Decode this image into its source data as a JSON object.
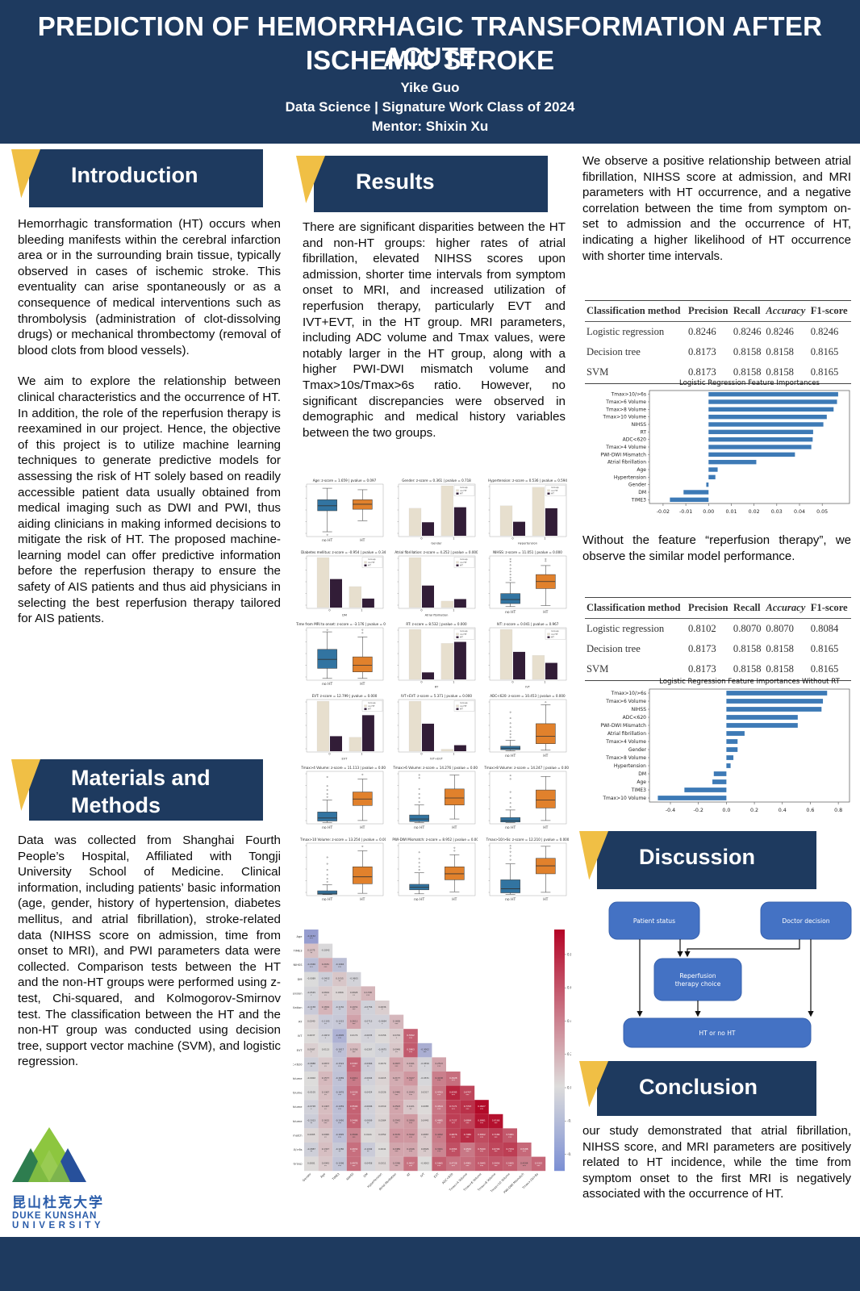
{
  "colors": {
    "navy": "#1e3a5f",
    "gold": "#f0bf45",
    "box_blue": "#3274a1",
    "box_orange": "#e1812c",
    "bar_beige": "#e7dfce",
    "bar_dark": "#321d37",
    "feat_bar": "#3d7ab6",
    "flow_box": "#4472c4"
  },
  "header": {
    "title_line1": "PREDICTION OF HEMORRHAGIC TRANSFORMATION AFTER ACUTE",
    "title_line2": "ISCHEMIC STROKE",
    "author": "Yike Guo",
    "program": "Data Science | Signature Work Class of 2024",
    "mentor": "Mentor: Shixin Xu"
  },
  "sections": {
    "introduction": {
      "title": "Introduction",
      "para1": "Hemorrhagic transformation (HT) occurs when bleeding manifests within the cerebral infarction area or in the surrounding brain tissue, typically observed in cases of ischemic stroke. This eventuality can arise spontaneously or as a consequence of medical interventions such as thrombolysis (administration of clot-dissolving drugs) or mechanical thrombectomy (removal of blood clots from blood vessels).",
      "para2": "We aim to explore the relationship between clinical characteristics and the occurrence of HT. In addition, the role of the reperfusion therapy is reexamined in our project. Hence, the objective of this project is to utilize machine learning techniques to generate predictive models for assessing the risk of HT solely based on readily accessible patient data usually obtained from medical imaging such as DWI and PWI, thus aiding clinicians in making informed decisions to mitigate the risk of HT. The proposed machine-learning model can offer predictive information before the reperfusion therapy to ensure the safety of AIS patients and thus aid physicians in selecting the best reperfusion therapy tailored for AIS patients."
    },
    "methods": {
      "title_line1": "Materials and",
      "title_line2": "Methods",
      "body": "Data was collected from Shanghai Fourth People’s Hospital, Affiliated with Tongji University School of Medicine. Clinical information, including patients’ basic information (age, gender, history of hypertension, diabetes mellitus, and atrial fibrillation), stroke-related data (NIHSS score on admission, time from onset to MRI), and PWI parameters data were collected. Comparison tests between the HT and the non-HT groups were performed using z-test, Chi-squared, and Kolmogorov-Smirnov test. The classification between the HT and the non-HT group was conducted using decision tree, support vector machine (SVM), and logistic regression."
    },
    "results": {
      "title": "Results",
      "body": "There are significant disparities between the HT and non-HT groups: higher rates of atrial fibrillation, elevated NIHSS scores upon admission, shorter time intervals from symptom onset to MRI, and increased utilization of reperfusion therapy, particularly EVT and IVT+EVT, in the HT group. MRI parameters, including ADC volume and Tmax values, were notably larger in the HT group, along with a higher PWI-DWI mismatch volume and Tmax>10s/Tmax>6s ratio. However, no significant discrepancies were observed in demographic and medical history variables between the two groups."
    },
    "right_column": {
      "para1": "We observe a positive relationship between atrial fibrillation, NIHSS score at admission, and MRI parameters with HT occurrence, and a negative correlation between the time from symptom on- set to admission and the occurrence of HT, indicating a higher likelihood of HT occurrence with shorter time intervals.",
      "para2": "Without the feature “reperfusion therapy”, we observe the similar model performance."
    },
    "discussion": {
      "title": "Discussion"
    },
    "conclusion": {
      "title": "Conclusion",
      "body": "our study demonstrated that atrial fibrillation, NIHSS score, and MRI parameters are positively related to HT incidence, while the time from symptom onset to the first MRI is negatively associated with the occurrence of HT."
    }
  },
  "tables": [
    {
      "headers": [
        "Classification method",
        "Precision",
        "Recall",
        "Accuracy",
        "F1-score"
      ],
      "rows": [
        [
          "Logistic regression",
          "0.8246",
          "0.8246",
          "0.8246",
          "0.8246"
        ],
        [
          "Decision tree",
          "0.8173",
          "0.8158",
          "0.8158",
          "0.8165"
        ],
        [
          "SVM",
          "0.8173",
          "0.8158",
          "0.8158",
          "0.8165"
        ]
      ]
    },
    {
      "headers": [
        "Classification method",
        "Precision",
        "Recall",
        "Accuracy",
        "F1-score"
      ],
      "rows": [
        [
          "Logistic regression",
          "0.8102",
          "0.8070",
          "0.8070",
          "0.8084"
        ],
        [
          "Decision tree",
          "0.8173",
          "0.8158",
          "0.8158",
          "0.8165"
        ],
        [
          "SVM",
          "0.8173",
          "0.8158",
          "0.8158",
          "0.8165"
        ]
      ]
    }
  ],
  "chart_data": [
    {
      "type": "bar",
      "name": "feat1",
      "title": "Logistic Regression Feature Importances",
      "categories": [
        "Tmax>10/>6s",
        "Tmax>6 Volume",
        "Tmax>8 Volume",
        "Tmax>10 Volume",
        "NIHSS",
        "RT",
        "ADC<620",
        "Tmax>4 Volume",
        "PWI-DWI Mismatch",
        "Atrial fibrillation",
        "Age",
        "Hypertension",
        "Gender",
        "DM",
        "TIME3"
      ],
      "values": [
        0.057,
        0.0565,
        0.055,
        0.052,
        0.0505,
        0.046,
        0.0458,
        0.0452,
        0.038,
        0.021,
        0.004,
        0.003,
        -0.001,
        -0.011,
        -0.017
      ],
      "xticks": [
        "-0.02",
        "-0.01",
        "0.00",
        "0.01",
        "0.02",
        "0.03",
        "0.04",
        "0.05"
      ],
      "xlim": [
        -0.026,
        0.062
      ]
    },
    {
      "type": "bar",
      "name": "feat2",
      "title": "Logistic Regression Feature Importances Without RT",
      "categories": [
        "Tmax>10/>6s",
        "Tmax>6 Volume",
        "NIHSS",
        "ADC<620",
        "PWI-DWI Mismatch",
        "Atrial fibrillation",
        "Tmax>4 Volume",
        "Gender",
        "Tmax>8 Volume",
        "Hypertension",
        "DM",
        "Age",
        "TIME3",
        "Tmax>10 Volume"
      ],
      "values": [
        0.72,
        0.69,
        0.68,
        0.51,
        0.51,
        0.13,
        0.08,
        0.08,
        0.05,
        0.03,
        -0.09,
        -0.1,
        -0.3,
        -0.49
      ],
      "xticks": [
        "-0.4",
        "-0.2",
        "0.0",
        "0.2",
        "0.4",
        "0.6",
        "0.8"
      ],
      "xlim": [
        -0.55,
        0.88
      ]
    }
  ],
  "plots": [
    {
      "type": "box",
      "title": "Age: z-score = 1.659 | pvalue = 0.097",
      "cats": [
        "no HT",
        "HT"
      ],
      "blue": {
        "lo": 0.08,
        "q1": 0.5,
        "med": 0.6,
        "q3": 0.72,
        "hi": 0.95,
        "out": [
          0.02
        ]
      },
      "orange": {
        "lo": 0.3,
        "q1": 0.53,
        "med": 0.63,
        "q3": 0.72,
        "hi": 0.92,
        "out": []
      }
    },
    {
      "type": "bar",
      "title": "Gender: z-score = 0.361 | pvalue = 0.718",
      "xlabel": "Gender",
      "groups": [
        [
          0.55,
          0.27
        ],
        [
          1.0,
          0.57
        ]
      ]
    },
    {
      "type": "bar",
      "title": "Hypertension: z-score = 0.536 | pvalue = 0.594",
      "xlabel": "Hypertension",
      "groups": [
        [
          0.6,
          0.28
        ],
        [
          0.97,
          0.55
        ]
      ]
    },
    {
      "type": "bar",
      "title": "Diabetes mellitus: z-score = -0.954 | pvalue = 0.340",
      "xlabel": "DM",
      "groups": [
        [
          1.0,
          0.57
        ],
        [
          0.42,
          0.18
        ]
      ]
    },
    {
      "type": "bar",
      "title": "Atrial fibrillation: z-score = 4.252 | pvalue = 0.000",
      "xlabel": "Atrial fibrillation",
      "groups": [
        [
          1.0,
          0.44
        ],
        [
          0.13,
          0.17
        ]
      ]
    },
    {
      "type": "box",
      "title": "NIHSS: z-score = 11.051 | pvalue = 0.000",
      "cats": [
        "no HT",
        "HT"
      ],
      "blue": {
        "lo": 0.02,
        "q1": 0.08,
        "med": 0.16,
        "q3": 0.28,
        "hi": 0.5,
        "out": [
          0.55,
          0.6,
          0.66,
          0.72,
          0.78,
          0.85,
          0.92,
          0.97
        ]
      },
      "orange": {
        "lo": 0.04,
        "q1": 0.38,
        "med": 0.52,
        "q3": 0.66,
        "hi": 0.84,
        "out": [
          0.93,
          0.97
        ]
      }
    },
    {
      "type": "box",
      "title": "Time from MRI to onset: z-score = -3.176 | pvalue = 0.001",
      "cats": [
        "no HT",
        "HT"
      ],
      "blue": {
        "lo": 0.02,
        "q1": 0.22,
        "med": 0.4,
        "q3": 0.6,
        "hi": 0.95,
        "out": [
          0.99
        ]
      },
      "orange": {
        "lo": 0.02,
        "q1": 0.15,
        "med": 0.28,
        "q3": 0.45,
        "hi": 0.85,
        "out": [
          0.93,
          0.99
        ]
      }
    },
    {
      "type": "bar",
      "title": "RT: z-score = 8.532 | pvalue = 0.000",
      "xlabel": "RT",
      "groups": [
        [
          1.0,
          0.14
        ],
        [
          0.72,
          0.75
        ]
      ]
    },
    {
      "type": "bar",
      "title": "IVT: z-score = 0.041 | pvalue = 0.967",
      "xlabel": "IVT",
      "groups": [
        [
          1.0,
          0.55
        ],
        [
          0.48,
          0.33
        ]
      ]
    },
    {
      "type": "bar",
      "title": "EVT: z-score = 12.799 | pvalue = 0.000",
      "xlabel": "EVT",
      "groups": [
        [
          1.0,
          0.3
        ],
        [
          0.28,
          0.72
        ]
      ]
    },
    {
      "type": "bar",
      "title": "IVT+EVT: z-score = 5.371 | pvalue = 0.000",
      "xlabel": "IVT+EVT",
      "groups": [
        [
          1.0,
          0.55
        ],
        [
          0.04,
          0.12
        ]
      ]
    },
    {
      "type": "box",
      "title": "ADC<620: z-score = 10.453 | pvalue = 0.000",
      "cats": [
        "no HT",
        "HT"
      ],
      "blue": {
        "lo": 0.01,
        "q1": 0.03,
        "med": 0.06,
        "q3": 0.1,
        "hi": 0.22,
        "out": [
          0.28,
          0.34,
          0.4,
          0.48,
          0.56,
          0.66,
          0.78
        ]
      },
      "orange": {
        "lo": 0.02,
        "q1": 0.15,
        "med": 0.3,
        "q3": 0.55,
        "hi": 0.93,
        "out": [
          0.98
        ]
      }
    },
    {
      "type": "box",
      "title": "Tmax>4 Volume: z-score = 11.113 | pvalue = 0.000",
      "cats": [
        "no HT",
        "HT"
      ],
      "blue": {
        "lo": 0.01,
        "q1": 0.04,
        "med": 0.1,
        "q3": 0.22,
        "hi": 0.46,
        "out": [
          0.52,
          0.58,
          0.66,
          0.74,
          0.92
        ]
      },
      "orange": {
        "lo": 0.05,
        "q1": 0.35,
        "med": 0.48,
        "q3": 0.62,
        "hi": 0.88,
        "out": [
          0.97
        ]
      }
    },
    {
      "type": "box",
      "title": "Tmax>6 Volume: z-score = 14.276 | pvalue = 0.000",
      "cats": [
        "no HT",
        "HT"
      ],
      "blue": {
        "lo": 0.01,
        "q1": 0.03,
        "med": 0.08,
        "q3": 0.16,
        "hi": 0.36,
        "out": [
          0.42,
          0.5,
          0.58,
          0.68,
          0.9,
          0.96
        ]
      },
      "orange": {
        "lo": 0.08,
        "q1": 0.36,
        "med": 0.5,
        "q3": 0.68,
        "hi": 0.96,
        "out": []
      }
    },
    {
      "type": "box",
      "title": "Tmax>8 Volume: z-score = 14.247 | pvalue = 0.000",
      "cats": [
        "no HT",
        "HT"
      ],
      "blue": {
        "lo": 0.01,
        "q1": 0.02,
        "med": 0.05,
        "q3": 0.11,
        "hi": 0.26,
        "out": [
          0.32,
          0.4,
          0.5,
          0.62,
          0.88,
          0.95
        ]
      },
      "orange": {
        "lo": 0.05,
        "q1": 0.3,
        "med": 0.46,
        "q3": 0.66,
        "hi": 0.93,
        "out": []
      }
    },
    {
      "type": "box",
      "title": "Tmax>10 Volume: z-score = 13.254 | pvalue = 0.000",
      "cats": [
        "no HT",
        "HT"
      ],
      "blue": {
        "lo": 0.005,
        "q1": 0.01,
        "med": 0.03,
        "q3": 0.08,
        "hi": 0.2,
        "out": [
          0.26,
          0.32,
          0.4,
          0.5,
          0.62,
          0.75
        ]
      },
      "orange": {
        "lo": 0.03,
        "q1": 0.22,
        "med": 0.36,
        "q3": 0.56,
        "hi": 0.88,
        "out": [
          0.97
        ]
      }
    },
    {
      "type": "box",
      "title": "PWI-DWI Mismatch: z-score = 8.952 | pvalue = 0.000",
      "cats": [
        "no HT",
        "HT"
      ],
      "blue": {
        "lo": 0.02,
        "q1": 0.1,
        "med": 0.15,
        "q3": 0.21,
        "hi": 0.44,
        "out": [
          0.5,
          0.56,
          0.64,
          0.72,
          0.85
        ]
      },
      "orange": {
        "lo": 0.06,
        "q1": 0.3,
        "med": 0.42,
        "q3": 0.56,
        "hi": 0.8,
        "out": [
          0.88,
          0.94
        ]
      }
    },
    {
      "type": "box",
      "title": "Tmax>10/>6s: z-score = 12.210 | pvalue = 0.000",
      "cats": [
        "no HT",
        "HT"
      ],
      "blue": {
        "lo": 0.01,
        "q1": 0.04,
        "med": 0.12,
        "q3": 0.3,
        "hi": 0.62,
        "out": [
          0.7,
          0.78,
          0.86,
          0.93,
          0.98
        ]
      },
      "orange": {
        "lo": 0.05,
        "q1": 0.42,
        "med": 0.58,
        "q3": 0.73,
        "hi": 0.97,
        "out": []
      }
    }
  ],
  "bar_legend": {
    "title": "Group",
    "no_ht": "no HT",
    "ht": "HT"
  },
  "heatmap": {
    "row_labels": [
      "Age",
      "TIME3",
      "NIHSS",
      "DM",
      "Hypertension",
      "Atrial fibrillation",
      "RT",
      "IVT",
      "EVT",
      "ADC<620",
      "Tmax>4 Volume",
      "Tmax>6 Volume",
      "Tmax>8 Volume",
      "Tmax>10 Volume",
      "PWI-DWI Mismatch",
      "Tmax>10/>6s",
      "Group"
    ],
    "col_labels": [
      "Gender",
      "Age",
      "TIME3",
      "NIHSS",
      "DM",
      "Hypertension",
      "Atrial fibrillation",
      "RT",
      "IVT",
      "EVT",
      "ADC<620",
      "Tmax>4 Volume",
      "Tmax>6 Volume",
      "Tmax>8 Volume",
      "Tmax>10 Volume",
      "PWI-DWI Mismatch",
      "Tmax>10/>6s"
    ],
    "values": [
      [
        -0.4152
      ],
      [
        0.1275,
        -0.0242
      ],
      [
        -0.2046,
        0.2181,
        -0.1946
      ],
      [
        -0.0089,
        -0.0932,
        0.1015,
        -0.0605
      ],
      [
        -0.0545,
        0.0819,
        0.0306,
        0.0828,
        0.1728
      ],
      [
        -0.1158,
        0.1819,
        -0.115,
        0.1931,
        -0.0756,
        0.0636
      ],
      [
        0.034,
        -0.1195,
        -0.1315,
        0.2611,
        -0.0713,
        -0.0694,
        0.1658
      ],
      [
        0.0037,
        -0.0672,
        -0.2805,
        0.0179,
        -0.0635,
        0.0156,
        0.0729,
        0.5592
      ],
      [
        0.0587,
        0.0113,
        -0.1817,
        0.1556,
        -0.0267,
        -0.0675,
        0.0948,
        0.5863,
        -0.3002
      ],
      [
        -0.0888,
        0.0873,
        -0.1522,
        0.5367,
        -0.0966,
        0.0079,
        0.2637,
        0.1941,
        -0.0556,
        0.2513
      ],
      [
        -0.0002,
        0.1577,
        -0.1689,
        0.4411,
        -0.0694,
        0.0415,
        0.2177,
        0.3127,
        -0.0331,
        0.4218,
        0.4928
      ],
      [
        -0.0105,
        0.1367,
        -0.1876,
        0.5226,
        -0.0424,
        0.0226,
        0.244,
        0.2043,
        0.0317,
        0.4763,
        0.8285,
        0.6767
      ],
      [
        -0.0728,
        0.1407,
        -0.1959,
        0.55,
        -0.0696,
        0.0319,
        0.2503,
        0.1021,
        0.0085,
        0.4514,
        0.7171,
        0.7723,
        0.9627
      ],
      [
        -0.1013,
        0.1615,
        -0.195,
        0.5486,
        -0.0809,
        0.0364,
        0.2542,
        0.3,
        0.0445,
        0.4685,
        0.7127,
        0.6894,
        0.8981,
        0.9166
      ],
      [
        0.0265,
        0.0995,
        -0.1895,
        0.3946,
        0.0141,
        0.0352,
        0.3155,
        0.3142,
        0.0887,
        0.4292,
        0.6876,
        0.798,
        0.6502,
        0.7186,
        0.5961
      ],
      [
        -0.0887,
        0.1327,
        -0.128,
        0.4932,
        -0.1092,
        0.0041,
        0.2489,
        0.2446,
        0.0826,
        0.3921,
        0.6364,
        0.4532,
        0.594,
        0.6799,
        0.7154,
        0.5188
      ],
      [
        0.0081,
        0.0943,
        -0.1596,
        0.4978,
        -0.0458,
        0.0311,
        0.2296,
        0.4817,
        -0.0002,
        0.5665,
        0.4728,
        0.4981,
        0.5845,
        0.5956,
        0.5655,
        0.4204,
        0.5332
      ]
    ],
    "colorbar_ticks": [
      "0.8",
      "0.6",
      "0.4",
      "0.2",
      "0.0",
      "-0.2",
      "-0.4"
    ]
  },
  "diagram": {
    "patient": "Patient status",
    "doctor": "Doctor decision",
    "reperfusion_line1": "Reperfusion",
    "reperfusion_line2": "therapy choice",
    "outcome": "HT or no HT"
  },
  "logo": {
    "cn": "昆山杜克大学",
    "en1": "DUKE KUNSHAN",
    "en2": "UNIVERSITY"
  }
}
